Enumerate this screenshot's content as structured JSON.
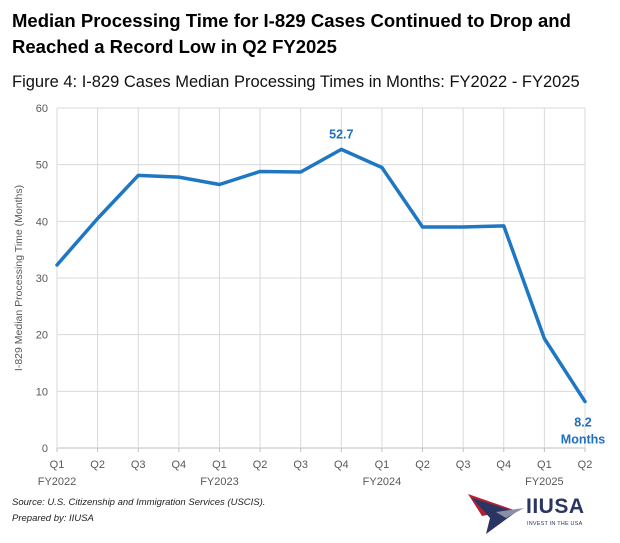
{
  "headline": "Median Processing Time for I-829 Cases Continued to Drop and Reached a Record Low in Q2 FY2025",
  "figure_title": "Figure 4: I-829 Cases Median Processing Times in Months: FY2022 - FY2025",
  "source": "Source: U.S. Citizenship and Immigration Services (USCIS).",
  "prepared_by": "Prepared by: IIUSA",
  "logo": {
    "name": "IIUSA",
    "tagline": "INVEST IN THE USA"
  },
  "colors": {
    "line": "#1f77c4",
    "grid": "#d9d9d9",
    "label": "#1f6fbf"
  },
  "chart_data": {
    "type": "line",
    "title": "Figure 4: I-829 Cases Median Processing Times in Months: FY2022 - FY2025",
    "xlabel": "",
    "ylabel": "I-829 Median Processing Time (Months)",
    "ylim": [
      0,
      60
    ],
    "yticks": [
      0,
      10,
      20,
      30,
      40,
      50,
      60
    ],
    "grid": true,
    "categories": [
      "Q1",
      "Q2",
      "Q3",
      "Q4",
      "Q1",
      "Q2",
      "Q3",
      "Q4",
      "Q1",
      "Q2",
      "Q3",
      "Q4",
      "Q1",
      "Q2"
    ],
    "year_labels": [
      {
        "index": 0,
        "label": "FY2022"
      },
      {
        "index": 4,
        "label": "FY2023"
      },
      {
        "index": 8,
        "label": "FY2024"
      },
      {
        "index": 12,
        "label": "FY2025"
      }
    ],
    "series": [
      {
        "name": "I-829 Median Processing Time",
        "values": [
          32.3,
          40.5,
          48.1,
          47.8,
          46.5,
          48.8,
          48.7,
          52.7,
          49.5,
          39.0,
          39.0,
          39.2,
          19.3,
          8.2
        ]
      }
    ],
    "annotations": [
      {
        "index": 7,
        "text": "52.7"
      },
      {
        "index": 13,
        "text": "8.2",
        "text2": "Months"
      }
    ]
  }
}
